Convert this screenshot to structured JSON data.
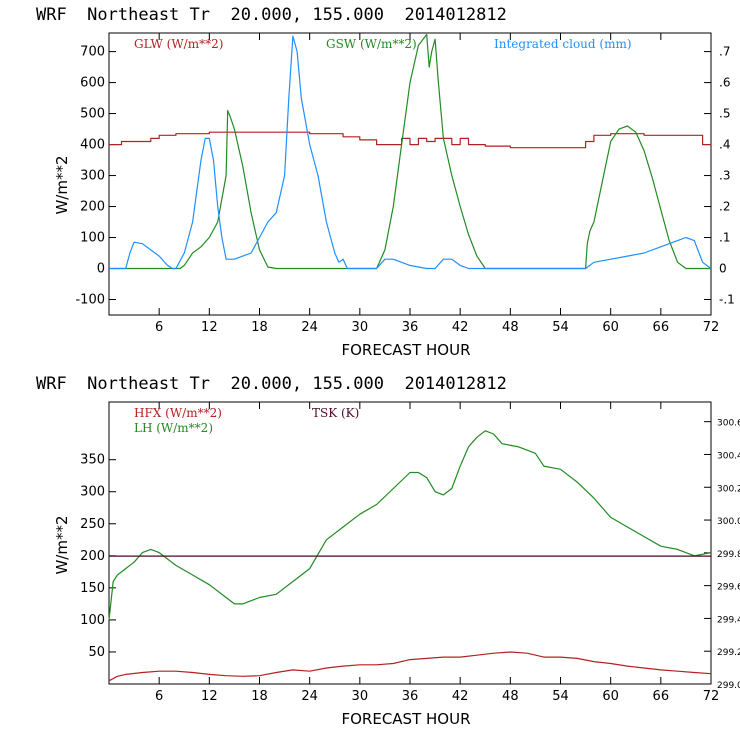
{
  "chart_data": [
    {
      "type": "line",
      "title": "WRF  Northeast Tr  20.000, 155.000  2014012812",
      "xlabel": "FORECAST HOUR",
      "ylabel": "W/m**2",
      "xlim": [
        0,
        72
      ],
      "ylim": [
        -150,
        760
      ],
      "y2lim": [
        -0.15,
        0.76
      ],
      "x_ticks": [
        6,
        12,
        18,
        24,
        30,
        36,
        42,
        48,
        54,
        60,
        66,
        72
      ],
      "y_ticks": [
        -100,
        0,
        100,
        200,
        300,
        400,
        500,
        600,
        700
      ],
      "y2_ticks": [
        -0.1,
        0,
        0.1,
        0.2,
        0.3,
        0.4,
        0.5,
        0.6,
        0.7
      ],
      "y2_tick_labels": [
        "-.1",
        "0",
        ".1",
        ".2",
        ".3",
        ".4",
        ".5",
        ".6",
        ".7"
      ],
      "series": [
        {
          "name": "GLW (W/m**2)",
          "color": "#b22222",
          "axis": "left",
          "step": true,
          "points": [
            [
              0,
              400
            ],
            [
              1.5,
              400
            ],
            [
              1.5,
              410
            ],
            [
              5,
              410
            ],
            [
              5,
              420
            ],
            [
              6,
              420
            ],
            [
              6,
              430
            ],
            [
              8,
              430
            ],
            [
              8,
              435
            ],
            [
              12,
              435
            ],
            [
              12,
              440
            ],
            [
              24,
              440
            ],
            [
              24,
              435
            ],
            [
              28,
              435
            ],
            [
              28,
              425
            ],
            [
              30,
              425
            ],
            [
              30,
              415
            ],
            [
              32,
              415
            ],
            [
              32,
              400
            ],
            [
              35,
              400
            ],
            [
              35,
              420
            ],
            [
              36,
              420
            ],
            [
              36,
              400
            ],
            [
              37,
              400
            ],
            [
              37,
              420
            ],
            [
              38,
              420
            ],
            [
              38,
              410
            ],
            [
              39,
              410
            ],
            [
              39,
              420
            ],
            [
              41,
              420
            ],
            [
              41,
              400
            ],
            [
              42,
              400
            ],
            [
              42,
              420
            ],
            [
              43,
              420
            ],
            [
              43,
              400
            ],
            [
              45,
              400
            ],
            [
              45,
              395
            ],
            [
              48,
              395
            ],
            [
              48,
              390
            ],
            [
              57,
              390
            ],
            [
              57,
              410
            ],
            [
              58,
              410
            ],
            [
              58,
              430
            ],
            [
              60,
              430
            ],
            [
              60,
              435
            ],
            [
              64,
              435
            ],
            [
              64,
              430
            ],
            [
              71,
              430
            ],
            [
              71,
              400
            ],
            [
              72,
              400
            ]
          ]
        },
        {
          "name": "GSW (W/m**2)",
          "color": "#228b22",
          "axis": "left",
          "step": false,
          "points": [
            [
              0,
              0
            ],
            [
              8.5,
              0
            ],
            [
              9,
              10
            ],
            [
              10,
              50
            ],
            [
              11,
              70
            ],
            [
              12,
              100
            ],
            [
              13,
              150
            ],
            [
              14,
              300
            ],
            [
              14.2,
              510
            ],
            [
              14.5,
              490
            ],
            [
              15,
              450
            ],
            [
              16,
              330
            ],
            [
              17,
              180
            ],
            [
              18,
              60
            ],
            [
              19,
              5
            ],
            [
              20,
              0
            ],
            [
              32,
              0
            ],
            [
              33,
              60
            ],
            [
              34,
              200
            ],
            [
              35,
              400
            ],
            [
              36,
              600
            ],
            [
              37,
              720
            ],
            [
              38,
              755
            ],
            [
              38.3,
              650
            ],
            [
              38.6,
              700
            ],
            [
              39,
              740
            ],
            [
              39.4,
              600
            ],
            [
              40,
              420
            ],
            [
              41,
              300
            ],
            [
              42,
              200
            ],
            [
              43,
              110
            ],
            [
              44,
              40
            ],
            [
              45,
              0
            ],
            [
              57,
              0
            ],
            [
              57.2,
              80
            ],
            [
              57.5,
              120
            ],
            [
              58,
              150
            ],
            [
              59,
              280
            ],
            [
              60,
              410
            ],
            [
              61,
              450
            ],
            [
              62,
              460
            ],
            [
              63,
              440
            ],
            [
              64,
              380
            ],
            [
              65,
              290
            ],
            [
              66,
              190
            ],
            [
              67,
              90
            ],
            [
              68,
              20
            ],
            [
              69,
              0
            ],
            [
              72,
              0
            ]
          ]
        },
        {
          "name": "Integrated cloud (mm)",
          "color": "#1e90ff",
          "axis": "right",
          "step": false,
          "points": [
            [
              0,
              0
            ],
            [
              2,
              0
            ],
            [
              2.5,
              0.05
            ],
            [
              3,
              0.085
            ],
            [
              4,
              0.08
            ],
            [
              5,
              0.06
            ],
            [
              6,
              0.04
            ],
            [
              7,
              0.01
            ],
            [
              7.6,
              0
            ],
            [
              8,
              0
            ],
            [
              9,
              0.05
            ],
            [
              10,
              0.15
            ],
            [
              10.5,
              0.25
            ],
            [
              11,
              0.35
            ],
            [
              11.5,
              0.42
            ],
            [
              12,
              0.42
            ],
            [
              12.5,
              0.35
            ],
            [
              13,
              0.2
            ],
            [
              13.5,
              0.1
            ],
            [
              14,
              0.03
            ],
            [
              15,
              0.03
            ],
            [
              16,
              0.04
            ],
            [
              17,
              0.05
            ],
            [
              18,
              0.1
            ],
            [
              19,
              0.15
            ],
            [
              20,
              0.18
            ],
            [
              21,
              0.3
            ],
            [
              21.5,
              0.55
            ],
            [
              22,
              0.75
            ],
            [
              22.5,
              0.7
            ],
            [
              23,
              0.55
            ],
            [
              24,
              0.4
            ],
            [
              25,
              0.3
            ],
            [
              26,
              0.15
            ],
            [
              27,
              0.05
            ],
            [
              27.5,
              0.02
            ],
            [
              28,
              0.03
            ],
            [
              28.5,
              0
            ],
            [
              32,
              0
            ],
            [
              33,
              0.03
            ],
            [
              34,
              0.03
            ],
            [
              35,
              0.02
            ],
            [
              36,
              0.01
            ],
            [
              37,
              0.005
            ],
            [
              38,
              0
            ],
            [
              39,
              0
            ],
            [
              40,
              0.03
            ],
            [
              41,
              0.03
            ],
            [
              42,
              0.01
            ],
            [
              43,
              0
            ],
            [
              57,
              0
            ],
            [
              58,
              0.02
            ],
            [
              60,
              0.03
            ],
            [
              62,
              0.04
            ],
            [
              64,
              0.05
            ],
            [
              66,
              0.07
            ],
            [
              68,
              0.09
            ],
            [
              69,
              0.1
            ],
            [
              70,
              0.09
            ],
            [
              71,
              0.02
            ],
            [
              72,
              0
            ]
          ]
        }
      ]
    },
    {
      "type": "line",
      "title": "WRF  Northeast Tr  20.000, 155.000  2014012812",
      "xlabel": "FORECAST HOUR",
      "ylabel": "W/m**2",
      "xlim": [
        0,
        72
      ],
      "ylim": [
        0,
        440
      ],
      "y2lim": [
        299.0,
        300.72
      ],
      "x_ticks": [
        6,
        12,
        18,
        24,
        30,
        36,
        42,
        48,
        54,
        60,
        66,
        72
      ],
      "y_ticks": [
        50,
        100,
        150,
        200,
        250,
        300,
        350
      ],
      "y2_ticks": [
        299.0,
        299.2,
        299.4,
        299.6,
        299.8,
        300.0,
        300.2,
        300.4,
        300.6
      ],
      "y2_tick_labels": [
        "299.0",
        "299.2",
        "299.4",
        "299.6",
        "299.8",
        "300.0",
        "300.2",
        "300.4",
        "300.6"
      ],
      "series": [
        {
          "name": "HFX (W/m**2)",
          "color": "#b22222",
          "axis": "left",
          "step": false,
          "points": [
            [
              0,
              5
            ],
            [
              1,
              12
            ],
            [
              2,
              15
            ],
            [
              4,
              18
            ],
            [
              6,
              20
            ],
            [
              8,
              20
            ],
            [
              10,
              18
            ],
            [
              12,
              15
            ],
            [
              14,
              13
            ],
            [
              16,
              12
            ],
            [
              18,
              13
            ],
            [
              20,
              18
            ],
            [
              22,
              22
            ],
            [
              24,
              20
            ],
            [
              26,
              25
            ],
            [
              28,
              28
            ],
            [
              30,
              30
            ],
            [
              32,
              30
            ],
            [
              34,
              32
            ],
            [
              36,
              38
            ],
            [
              38,
              40
            ],
            [
              40,
              42
            ],
            [
              42,
              42
            ],
            [
              44,
              45
            ],
            [
              46,
              48
            ],
            [
              48,
              50
            ],
            [
              50,
              48
            ],
            [
              52,
              42
            ],
            [
              54,
              42
            ],
            [
              56,
              40
            ],
            [
              58,
              35
            ],
            [
              60,
              32
            ],
            [
              62,
              28
            ],
            [
              64,
              25
            ],
            [
              66,
              22
            ],
            [
              68,
              20
            ],
            [
              70,
              18
            ],
            [
              72,
              16
            ]
          ]
        },
        {
          "name": "LH (W/m**2)",
          "color": "#228b22",
          "axis": "left",
          "step": false,
          "points": [
            [
              0,
              100
            ],
            [
              0.5,
              160
            ],
            [
              1,
              170
            ],
            [
              2,
              180
            ],
            [
              3,
              190
            ],
            [
              4,
              205
            ],
            [
              5,
              210
            ],
            [
              6,
              205
            ],
            [
              7,
              195
            ],
            [
              8,
              185
            ],
            [
              10,
              170
            ],
            [
              12,
              155
            ],
            [
              14,
              135
            ],
            [
              15,
              125
            ],
            [
              16,
              125
            ],
            [
              17,
              130
            ],
            [
              18,
              135
            ],
            [
              20,
              140
            ],
            [
              22,
              160
            ],
            [
              24,
              180
            ],
            [
              26,
              225
            ],
            [
              28,
              245
            ],
            [
              30,
              265
            ],
            [
              32,
              280
            ],
            [
              34,
              305
            ],
            [
              36,
              330
            ],
            [
              37,
              330
            ],
            [
              38,
              322
            ],
            [
              39,
              300
            ],
            [
              40,
              295
            ],
            [
              41,
              305
            ],
            [
              42,
              340
            ],
            [
              43,
              370
            ],
            [
              44,
              385
            ],
            [
              45,
              395
            ],
            [
              46,
              390
            ],
            [
              47,
              375
            ],
            [
              49,
              370
            ],
            [
              51,
              360
            ],
            [
              52,
              340
            ],
            [
              54,
              335
            ],
            [
              56,
              315
            ],
            [
              58,
              290
            ],
            [
              60,
              260
            ],
            [
              62,
              245
            ],
            [
              64,
              230
            ],
            [
              66,
              215
            ],
            [
              68,
              210
            ],
            [
              70,
              200
            ],
            [
              72,
              205
            ]
          ]
        },
        {
          "name": "TSK (K)",
          "color": "#4b0a2a",
          "axis": "right",
          "step": false,
          "points": [
            [
              0,
              299.78
            ],
            [
              72,
              299.78
            ]
          ]
        }
      ]
    }
  ]
}
